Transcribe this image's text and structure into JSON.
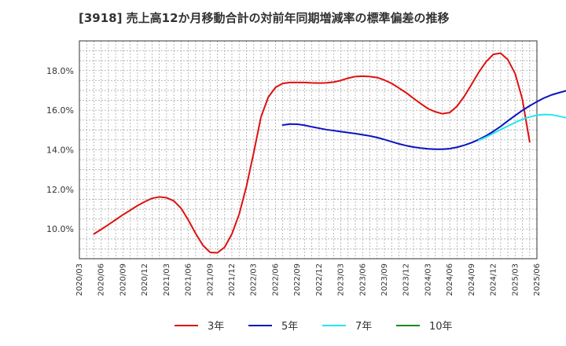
{
  "chart_data": {
    "type": "line",
    "title": "[3918]  売上高12か月移動合計の対前年同期増減率の標準偏差の推移",
    "xlabel": "",
    "ylabel": "",
    "ylim": [
      8.5,
      19.5
    ],
    "y_ticks": [
      10,
      12,
      14,
      16,
      18
    ],
    "y_tick_labels": [
      "10.0%",
      "12.0%",
      "14.0%",
      "16.0%",
      "18.0%"
    ],
    "x_range": [
      0,
      63
    ],
    "x_tick_labels": [
      "2020/03",
      "2020/06",
      "2020/09",
      "2020/12",
      "2021/03",
      "2021/06",
      "2021/09",
      "2021/12",
      "2022/03",
      "2022/06",
      "2022/09",
      "2022/12",
      "2023/03",
      "2023/06",
      "2023/09",
      "2023/12",
      "2024/03",
      "2024/06",
      "2024/09",
      "2024/12",
      "2025/03",
      "2025/06"
    ],
    "grid": true,
    "legend_position": "bottom",
    "series": [
      {
        "name": "3年",
        "color": "#dd1111",
        "start": 2,
        "values": [
          9.75,
          9.98,
          10.22,
          10.47,
          10.72,
          10.95,
          11.18,
          11.38,
          11.55,
          11.62,
          11.58,
          11.42,
          11.05,
          10.45,
          9.78,
          9.18,
          8.82,
          8.8,
          9.08,
          9.75,
          10.75,
          12.15,
          13.85,
          15.65,
          16.65,
          17.15,
          17.35,
          17.4,
          17.4,
          17.4,
          17.38,
          17.37,
          17.38,
          17.42,
          17.5,
          17.62,
          17.7,
          17.72,
          17.7,
          17.65,
          17.52,
          17.35,
          17.12,
          16.88,
          16.6,
          16.33,
          16.08,
          15.92,
          15.82,
          15.88,
          16.2,
          16.7,
          17.3,
          17.92,
          18.45,
          18.82,
          18.88,
          18.55,
          17.85,
          16.55,
          14.4
        ]
      },
      {
        "name": "5年",
        "color": "#0a14c0",
        "start": 28,
        "values": [
          15.25,
          15.3,
          15.29,
          15.24,
          15.16,
          15.09,
          15.02,
          14.97,
          14.92,
          14.87,
          14.82,
          14.76,
          14.7,
          14.62,
          14.52,
          14.41,
          14.3,
          14.21,
          14.14,
          14.09,
          14.05,
          14.03,
          14.03,
          14.06,
          14.13,
          14.23,
          14.36,
          14.52,
          14.71,
          14.93,
          15.18,
          15.46,
          15.73,
          15.99,
          16.22,
          16.43,
          16.62,
          16.77,
          16.88,
          16.98
        ]
      },
      {
        "name": "7年",
        "color": "#22e6ee",
        "start": 55,
        "values": [
          14.48,
          14.64,
          14.83,
          15.02,
          15.2,
          15.38,
          15.54,
          15.66,
          15.75,
          15.78,
          15.77,
          15.7,
          15.62
        ]
      },
      {
        "name": "10年",
        "color": "#1b8a1b",
        "start": 0,
        "values": []
      }
    ]
  }
}
